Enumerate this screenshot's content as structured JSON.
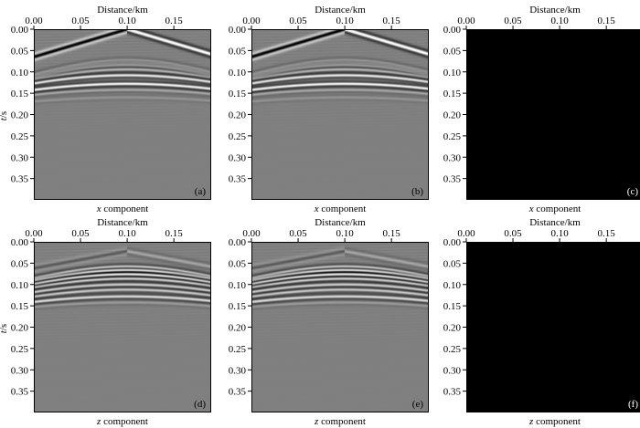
{
  "figure": {
    "axis_xlabel": "Distance/km",
    "axis_ylabel_t": "t",
    "axis_ylabel_unit": "/s",
    "component_word": "component"
  },
  "colors": {
    "background": "#808080",
    "dark_panel": "#000000",
    "axis": "#000000"
  },
  "chart_data": [
    {
      "type": "heatmap",
      "panel_label": "(a)",
      "caption_var": "x",
      "caption_rest": " component",
      "xlabel": "Distance/km",
      "ylabel": "t/s",
      "xlim": [
        0.0,
        0.19
      ],
      "ylim": [
        0.4,
        0.0
      ],
      "xticks": [
        "0.00",
        "0.05",
        "0.10",
        "0.15"
      ],
      "yticks": [
        "0.00",
        "0.05",
        "0.10",
        "0.15",
        "0.20",
        "0.25",
        "0.30",
        "0.35"
      ],
      "content": "gather",
      "source_x_km": 0.1,
      "events": [
        {
          "kind": "direct",
          "t0": 0.0,
          "slope_s_per_km": 0.65,
          "amp": 1.0
        },
        {
          "kind": "hyperbola",
          "t0": 0.072,
          "v_km_s": 1.3,
          "amp": 0.3
        },
        {
          "kind": "hyperbola",
          "t0": 0.078,
          "v_km_s": 1.3,
          "amp": 0.35
        },
        {
          "kind": "hyperbola",
          "t0": 0.084,
          "v_km_s": 1.3,
          "amp": 0.4
        },
        {
          "kind": "hyperbola",
          "t0": 0.094,
          "v_km_s": 1.4,
          "amp": 0.45
        },
        {
          "kind": "hyperbola",
          "t0": 0.108,
          "v_km_s": 1.5,
          "amp": 0.8
        },
        {
          "kind": "hyperbola",
          "t0": 0.128,
          "v_km_s": 1.6,
          "amp": 0.9
        },
        {
          "kind": "hyperbola",
          "t0": 0.142,
          "v_km_s": 1.7,
          "amp": 0.3
        },
        {
          "kind": "hyperbola",
          "t0": 0.16,
          "v_km_s": 1.8,
          "amp": 0.15
        }
      ]
    },
    {
      "type": "heatmap",
      "panel_label": "(b)",
      "caption_var": "x",
      "caption_rest": " component",
      "xlabel": "Distance/km",
      "ylabel": "t/s",
      "xlim": [
        0.0,
        0.19
      ],
      "ylim": [
        0.4,
        0.0
      ],
      "xticks": [
        "0.00",
        "0.05",
        "0.10",
        "0.15"
      ],
      "yticks": [
        "0.00",
        "0.05",
        "0.10",
        "0.15",
        "0.20",
        "0.25",
        "0.30",
        "0.35"
      ],
      "content": "gather",
      "source_x_km": 0.1,
      "events": [
        {
          "kind": "direct",
          "t0": 0.0,
          "slope_s_per_km": 0.65,
          "amp": 1.0
        },
        {
          "kind": "hyperbola",
          "t0": 0.072,
          "v_km_s": 1.3,
          "amp": 0.3
        },
        {
          "kind": "hyperbola",
          "t0": 0.078,
          "v_km_s": 1.3,
          "amp": 0.35
        },
        {
          "kind": "hyperbola",
          "t0": 0.084,
          "v_km_s": 1.3,
          "amp": 0.4
        },
        {
          "kind": "hyperbola",
          "t0": 0.094,
          "v_km_s": 1.4,
          "amp": 0.45
        },
        {
          "kind": "hyperbola",
          "t0": 0.108,
          "v_km_s": 1.5,
          "amp": 0.8
        },
        {
          "kind": "hyperbola",
          "t0": 0.128,
          "v_km_s": 1.6,
          "amp": 0.9
        },
        {
          "kind": "hyperbola",
          "t0": 0.142,
          "v_km_s": 1.7,
          "amp": 0.3
        },
        {
          "kind": "hyperbola",
          "t0": 0.16,
          "v_km_s": 1.8,
          "amp": 0.15
        }
      ]
    },
    {
      "type": "heatmap",
      "panel_label": "(c)",
      "caption_var": "x",
      "caption_rest": " component",
      "xlabel": "Distance/km",
      "ylabel": "t/s",
      "xlim": [
        0.0,
        0.19
      ],
      "ylim": [
        0.4,
        0.0
      ],
      "xticks": [
        "0.00",
        "0.05",
        "0.10",
        "0.15"
      ],
      "yticks": [
        "0.00",
        "0.05",
        "0.10",
        "0.15",
        "0.20",
        "0.25",
        "0.30",
        "0.35"
      ],
      "content": "zero",
      "events": []
    },
    {
      "type": "heatmap",
      "panel_label": "(d)",
      "caption_var": "z",
      "caption_rest": " component",
      "xlabel": "Distance/km",
      "ylabel": "t/s",
      "xlim": [
        0.0,
        0.19
      ],
      "ylim": [
        0.4,
        0.0
      ],
      "xticks": [
        "0.00",
        "0.05",
        "0.10",
        "0.15"
      ],
      "yticks": [
        "0.00",
        "0.05",
        "0.10",
        "0.15",
        "0.20",
        "0.25",
        "0.30",
        "0.35"
      ],
      "content": "gather",
      "source_x_km": 0.1,
      "events": [
        {
          "kind": "direct",
          "t0": 0.022,
          "slope_s_per_km": 0.4,
          "amp": 0.25
        },
        {
          "kind": "hyperbola",
          "t0": 0.058,
          "v_km_s": 1.6,
          "amp": 0.8
        },
        {
          "kind": "hyperbola",
          "t0": 0.066,
          "v_km_s": 1.6,
          "amp": 1.0
        },
        {
          "kind": "hyperbola",
          "t0": 0.076,
          "v_km_s": 1.6,
          "amp": 1.0
        },
        {
          "kind": "hyperbola",
          "t0": 0.086,
          "v_km_s": 1.6,
          "amp": 0.7
        },
        {
          "kind": "hyperbola",
          "t0": 0.1,
          "v_km_s": 1.6,
          "amp": 0.6
        },
        {
          "kind": "hyperbola",
          "t0": 0.112,
          "v_km_s": 1.6,
          "amp": 0.55
        },
        {
          "kind": "hyperbola",
          "t0": 0.128,
          "v_km_s": 1.7,
          "amp": 0.7
        },
        {
          "kind": "hyperbola",
          "t0": 0.142,
          "v_km_s": 1.8,
          "amp": 0.2
        }
      ]
    },
    {
      "type": "heatmap",
      "panel_label": "(e)",
      "caption_var": "z",
      "caption_rest": " component",
      "xlabel": "Distance/km",
      "ylabel": "t/s",
      "xlim": [
        0.0,
        0.19
      ],
      "ylim": [
        0.4,
        0.0
      ],
      "xticks": [
        "0.00",
        "0.05",
        "0.10",
        "0.15"
      ],
      "yticks": [
        "0.00",
        "0.05",
        "0.10",
        "0.15",
        "0.20",
        "0.25",
        "0.30",
        "0.35"
      ],
      "content": "gather",
      "source_x_km": 0.1,
      "events": [
        {
          "kind": "direct",
          "t0": 0.022,
          "slope_s_per_km": 0.4,
          "amp": 0.25
        },
        {
          "kind": "hyperbola",
          "t0": 0.058,
          "v_km_s": 1.6,
          "amp": 0.8
        },
        {
          "kind": "hyperbola",
          "t0": 0.066,
          "v_km_s": 1.6,
          "amp": 1.0
        },
        {
          "kind": "hyperbola",
          "t0": 0.076,
          "v_km_s": 1.6,
          "amp": 1.0
        },
        {
          "kind": "hyperbola",
          "t0": 0.086,
          "v_km_s": 1.6,
          "amp": 0.7
        },
        {
          "kind": "hyperbola",
          "t0": 0.1,
          "v_km_s": 1.6,
          "amp": 0.6
        },
        {
          "kind": "hyperbola",
          "t0": 0.112,
          "v_km_s": 1.6,
          "amp": 0.55
        },
        {
          "kind": "hyperbola",
          "t0": 0.128,
          "v_km_s": 1.7,
          "amp": 0.7
        },
        {
          "kind": "hyperbola",
          "t0": 0.142,
          "v_km_s": 1.8,
          "amp": 0.2
        }
      ]
    },
    {
      "type": "heatmap",
      "panel_label": "(f)",
      "caption_var": "z",
      "caption_rest": " component",
      "xlabel": "Distance/km",
      "ylabel": "t/s",
      "xlim": [
        0.0,
        0.19
      ],
      "ylim": [
        0.4,
        0.0
      ],
      "xticks": [
        "0.00",
        "0.05",
        "0.10",
        "0.15"
      ],
      "yticks": [
        "0.00",
        "0.05",
        "0.10",
        "0.15",
        "0.20",
        "0.25",
        "0.30",
        "0.35"
      ],
      "content": "zero",
      "events": []
    }
  ]
}
